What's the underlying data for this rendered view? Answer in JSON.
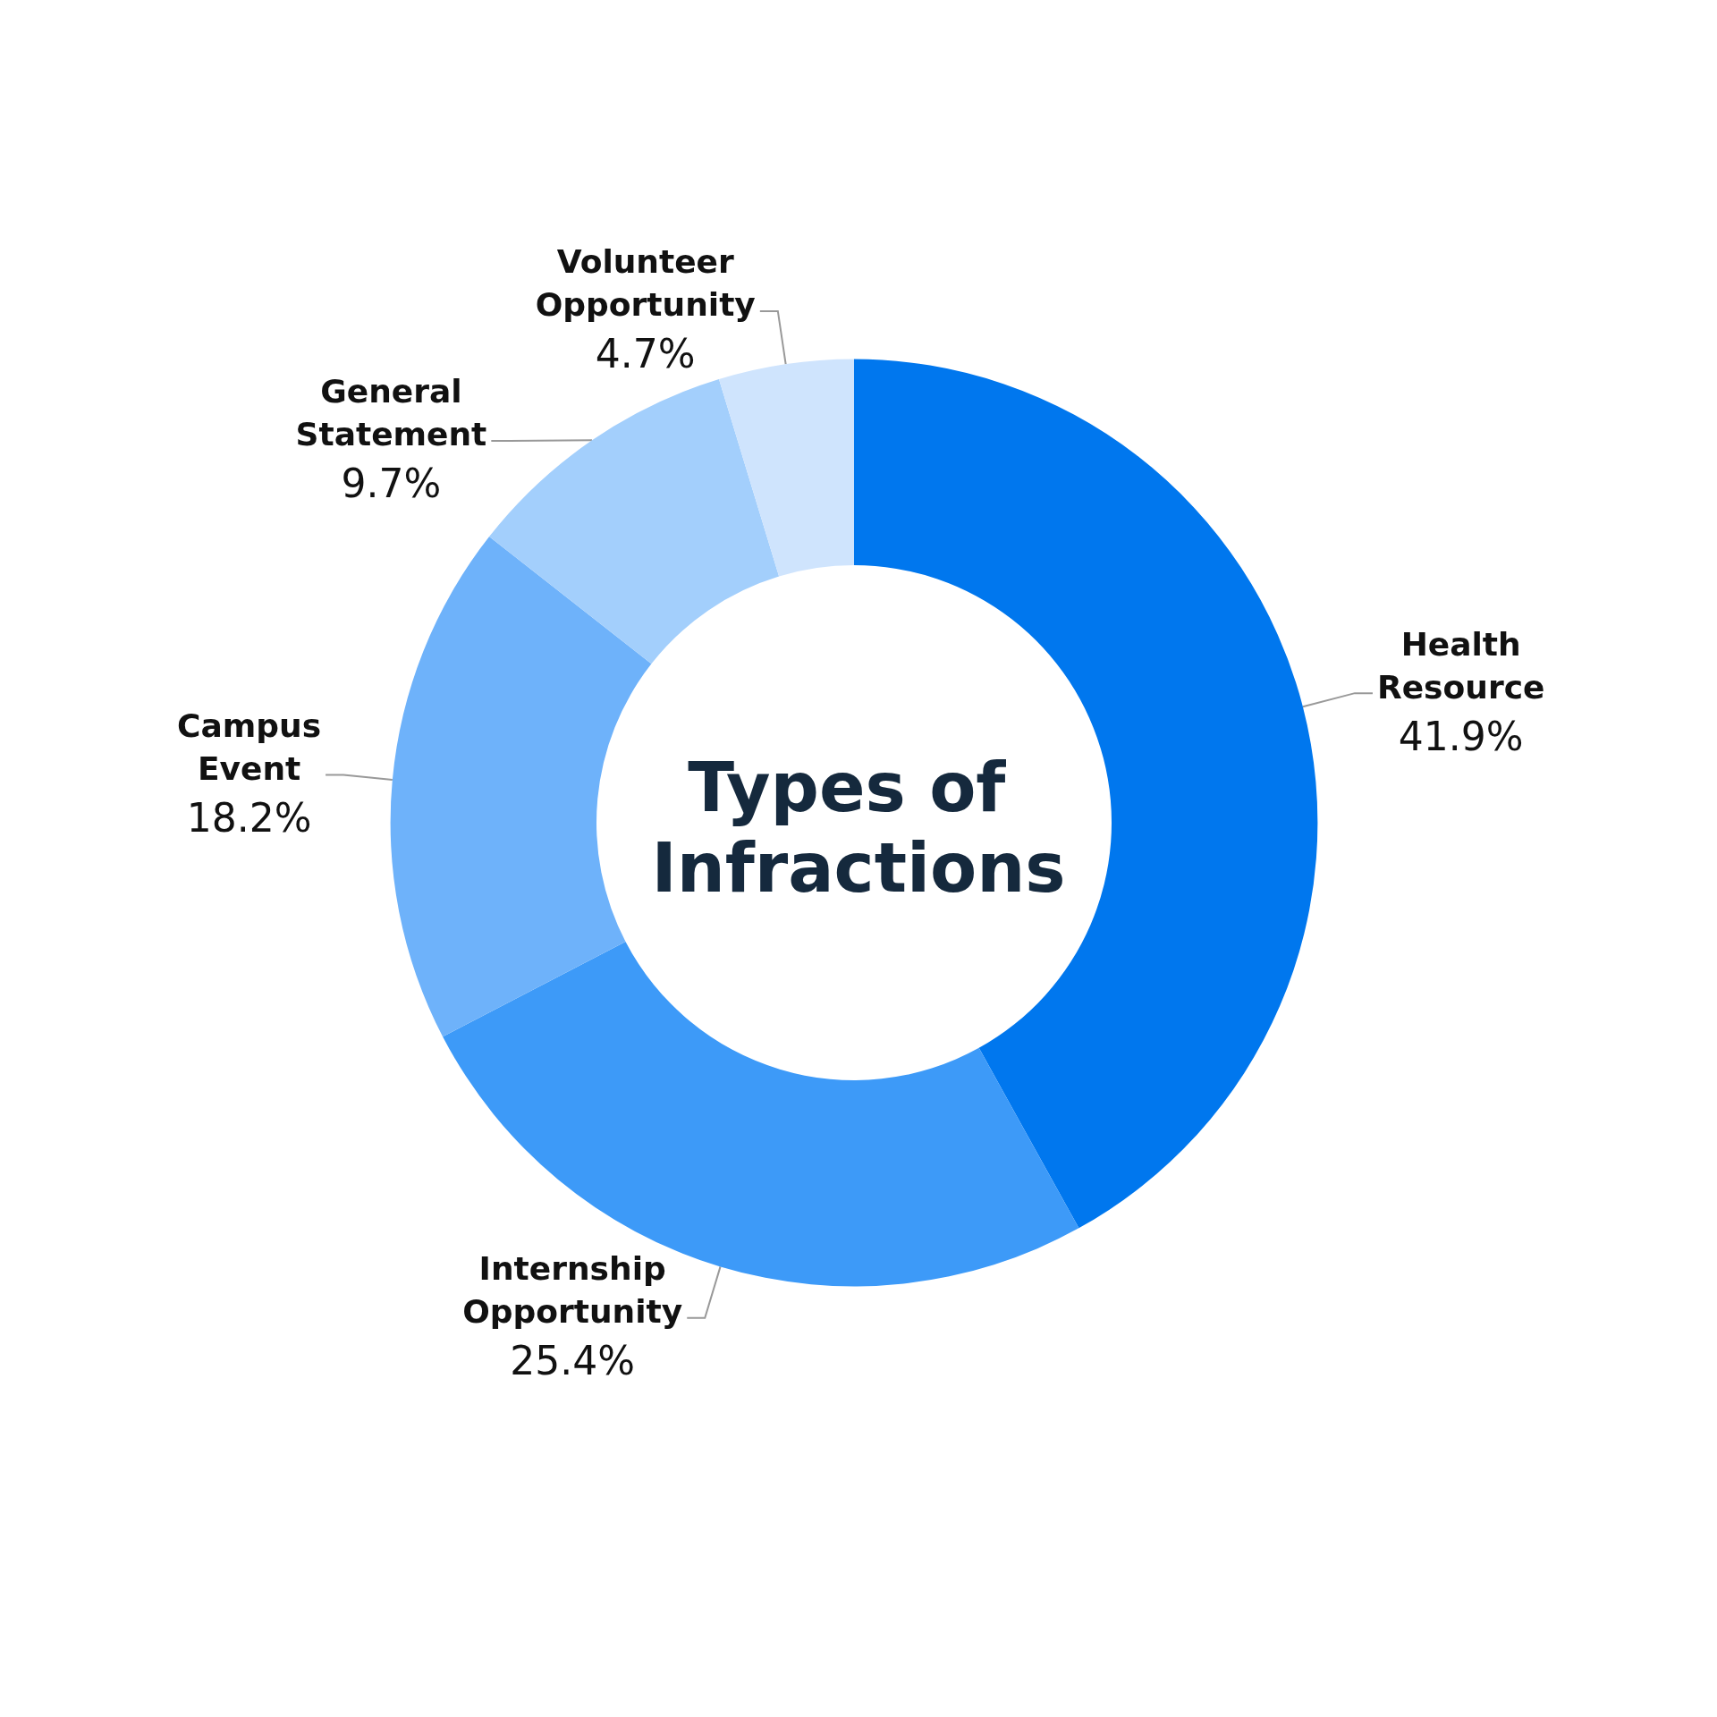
{
  "chart_data": {
    "type": "donut",
    "title": "Types of Infractions",
    "categories": [
      "Health Resource",
      "Internship Opportunity",
      "Campus Event",
      "General Statement",
      "Volunteer Opportunity"
    ],
    "values": [
      41.9,
      25.4,
      18.2,
      9.7,
      4.7
    ],
    "value_labels": [
      "41.9%",
      "25.4%",
      "18.2%",
      "9.7%",
      "4.7%"
    ],
    "colors": [
      "#0077ee",
      "#3d9af8",
      "#6eb2fa",
      "#a3cffc",
      "#cfe4fd"
    ],
    "legend": false
  }
}
